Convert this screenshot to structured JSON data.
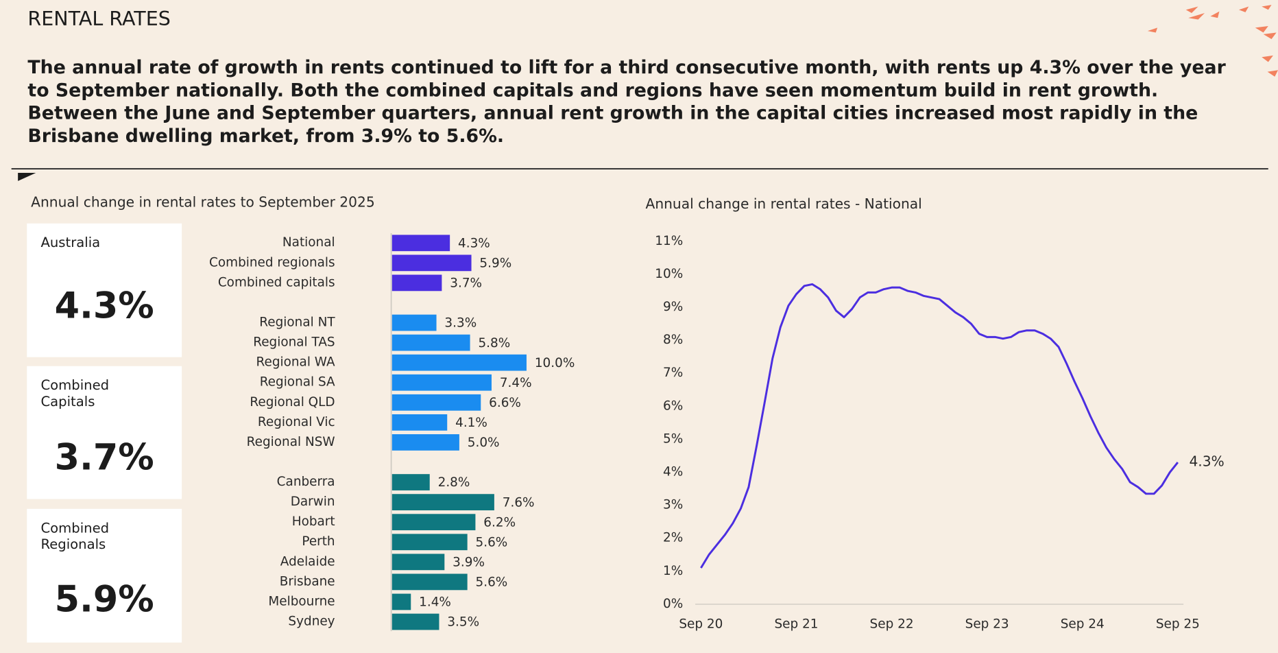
{
  "header": {
    "title": "RENTAL RATES",
    "summary": "The annual rate of growth in rents continued to lift for a third consecutive month, with rents up 4.3% over the year to September nationally. Both the combined capitals and regions have seen momentum build in rent growth. Between the June and September quarters, annual rent growth in the capital cities increased most rapidly in the Brisbane dwelling market, from 3.9% to 5.6%."
  },
  "kpis": [
    {
      "label": "Australia",
      "value": "4.3%"
    },
    {
      "label": "Combined Capitals",
      "value": "3.7%"
    },
    {
      "label": "Combined Regionals",
      "value": "5.9%"
    }
  ],
  "chart_data": [
    {
      "type": "barh",
      "title": "Annual change in rental rates to September 2025",
      "categories": [
        "National",
        "Combined regionals",
        "Combined capitals",
        "Regional NT",
        "Regional TAS",
        "Regional WA",
        "Regional SA",
        "Regional QLD",
        "Regional Vic",
        "Regional NSW",
        "Canberra",
        "Darwin",
        "Hobart",
        "Perth",
        "Adelaide",
        "Brisbane",
        "Melbourne",
        "Sydney"
      ],
      "values": [
        4.3,
        5.9,
        3.7,
        3.3,
        5.8,
        10.0,
        7.4,
        6.6,
        4.1,
        5.0,
        2.8,
        7.6,
        6.2,
        5.6,
        3.9,
        5.6,
        1.4,
        3.5
      ],
      "value_labels": [
        "4.3%",
        "5.9%",
        "3.7%",
        "3.3%",
        "5.8%",
        "10.0%",
        "7.4%",
        "6.6%",
        "4.1%",
        "5.0%",
        "2.8%",
        "7.6%",
        "6.2%",
        "5.6%",
        "3.9%",
        "5.6%",
        "1.4%",
        "3.5%"
      ],
      "colors": [
        "#4b2ee0",
        "#4b2ee0",
        "#4b2ee0",
        "#1a8cf0",
        "#1a8cf0",
        "#1a8cf0",
        "#1a8cf0",
        "#1a8cf0",
        "#1a8cf0",
        "#1a8cf0",
        "#0f7880",
        "#0f7880",
        "#0f7880",
        "#0f7880",
        "#0f7880",
        "#0f7880",
        "#0f7880",
        "#0f7880"
      ]
    },
    {
      "type": "line",
      "title": "Annual change in rental rates - National",
      "color": "#4b2ee0",
      "categories": [
        "Sep 20",
        null,
        null,
        null,
        null,
        null,
        null,
        null,
        null,
        null,
        null,
        null,
        "Sep 21",
        null,
        null,
        null,
        null,
        null,
        null,
        null,
        null,
        null,
        null,
        null,
        "Sep 22",
        null,
        null,
        null,
        null,
        null,
        null,
        null,
        null,
        null,
        null,
        null,
        "Sep 23",
        null,
        null,
        null,
        null,
        null,
        null,
        null,
        null,
        null,
        null,
        null,
        "Sep 24",
        null,
        null,
        null,
        null,
        null,
        null,
        null,
        null,
        null,
        null,
        null,
        "Sep 25"
      ],
      "values": [
        1.1,
        1.5,
        1.8,
        2.1,
        2.45,
        2.9,
        3.55,
        4.8,
        6.1,
        7.45,
        8.4,
        9.05,
        9.4,
        9.65,
        9.7,
        9.55,
        9.3,
        8.9,
        8.7,
        8.95,
        9.3,
        9.45,
        9.45,
        9.55,
        9.6,
        9.6,
        9.5,
        9.45,
        9.35,
        9.3,
        9.25,
        9.05,
        8.85,
        8.7,
        8.5,
        8.2,
        8.1,
        8.1,
        8.05,
        8.1,
        8.25,
        8.3,
        8.3,
        8.2,
        8.05,
        7.8,
        7.3,
        6.75,
        6.25,
        5.7,
        5.2,
        4.75,
        4.4,
        4.1,
        3.7,
        3.55,
        3.35,
        3.35,
        3.6,
        4.0,
        4.3
      ],
      "end_label": "4.3%",
      "ylim": [
        0,
        11
      ],
      "yticks": [
        {
          "value": 0,
          "label": "0%"
        },
        {
          "value": 1,
          "label": "1%"
        },
        {
          "value": 2,
          "label": "2%"
        },
        {
          "value": 3,
          "label": "3%"
        },
        {
          "value": 4,
          "label": "4%"
        },
        {
          "value": 5,
          "label": "5%"
        },
        {
          "value": 6,
          "label": "6%"
        },
        {
          "value": 7,
          "label": "7%"
        },
        {
          "value": 8,
          "label": "8%"
        },
        {
          "value": 9,
          "label": "9%"
        },
        {
          "value": 10,
          "label": "10%"
        },
        {
          "value": 11,
          "label": "11%"
        }
      ],
      "grid": false
    }
  ]
}
